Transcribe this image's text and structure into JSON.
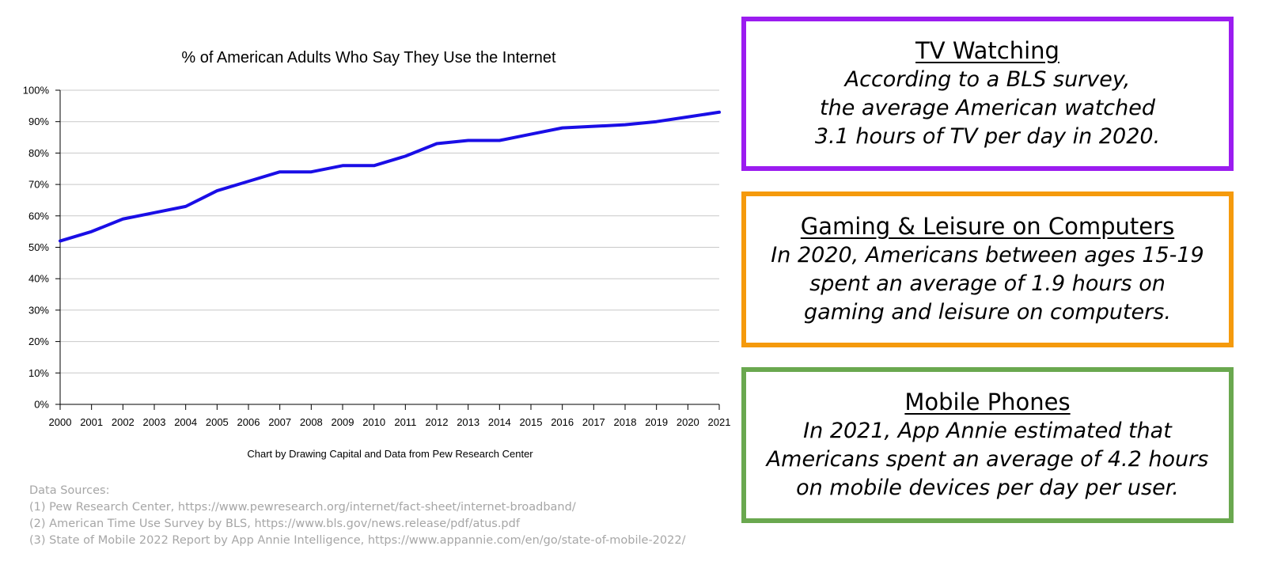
{
  "chart_data": {
    "type": "line",
    "title": "% of American Adults Who Say They Use the Internet",
    "caption": "Chart by Drawing Capital and Data from Pew Research Center",
    "xlabel": "",
    "ylabel": "",
    "x": [
      2000,
      2001,
      2002,
      2003,
      2004,
      2005,
      2006,
      2007,
      2008,
      2009,
      2010,
      2011,
      2012,
      2013,
      2014,
      2015,
      2016,
      2017,
      2018,
      2019,
      2020,
      2021
    ],
    "series": [
      {
        "values": [
          52,
          55,
          59,
          61,
          63,
          68,
          71,
          74,
          74,
          76,
          76,
          79,
          83,
          84,
          84,
          86,
          88,
          88.5,
          89,
          90,
          91.5,
          93
        ]
      }
    ],
    "ylim": [
      0,
      100
    ],
    "yticks": [
      "0%",
      "10%",
      "20%",
      "30%",
      "40%",
      "50%",
      "60%",
      "70%",
      "80%",
      "90%",
      "100%"
    ],
    "grid": true,
    "line_color": "#1a0ee6"
  },
  "boxes": [
    {
      "title": "TV Watching",
      "border_color": "#9b1cf0",
      "lines": [
        "According to a BLS survey,",
        "the average American watched",
        "3.1 hours of TV per day in 2020."
      ]
    },
    {
      "title": "Gaming & Leisure on Computers",
      "border_color": "#f59a0c",
      "lines": [
        "In 2020, Americans between ages 15-19",
        "spent an average of 1.9 hours on",
        "gaming and leisure on computers."
      ]
    },
    {
      "title": "Mobile Phones",
      "border_color": "#6aa84f",
      "lines": [
        "In 2021, App Annie estimated that",
        "Americans spent an average of 4.2 hours",
        "on mobile devices per day per user."
      ]
    }
  ],
  "sources": {
    "heading": "Data Sources:",
    "items": [
      "(1) Pew Research Center, https://www.pewresearch.org/internet/fact-sheet/internet-broadband/",
      "(2) American Time Use Survey by BLS, https://www.bls.gov/news.release/pdf/atus.pdf",
      "(3) State of Mobile 2022 Report by App Annie Intelligence, https://www.appannie.com/en/go/state-of-mobile-2022/"
    ]
  }
}
